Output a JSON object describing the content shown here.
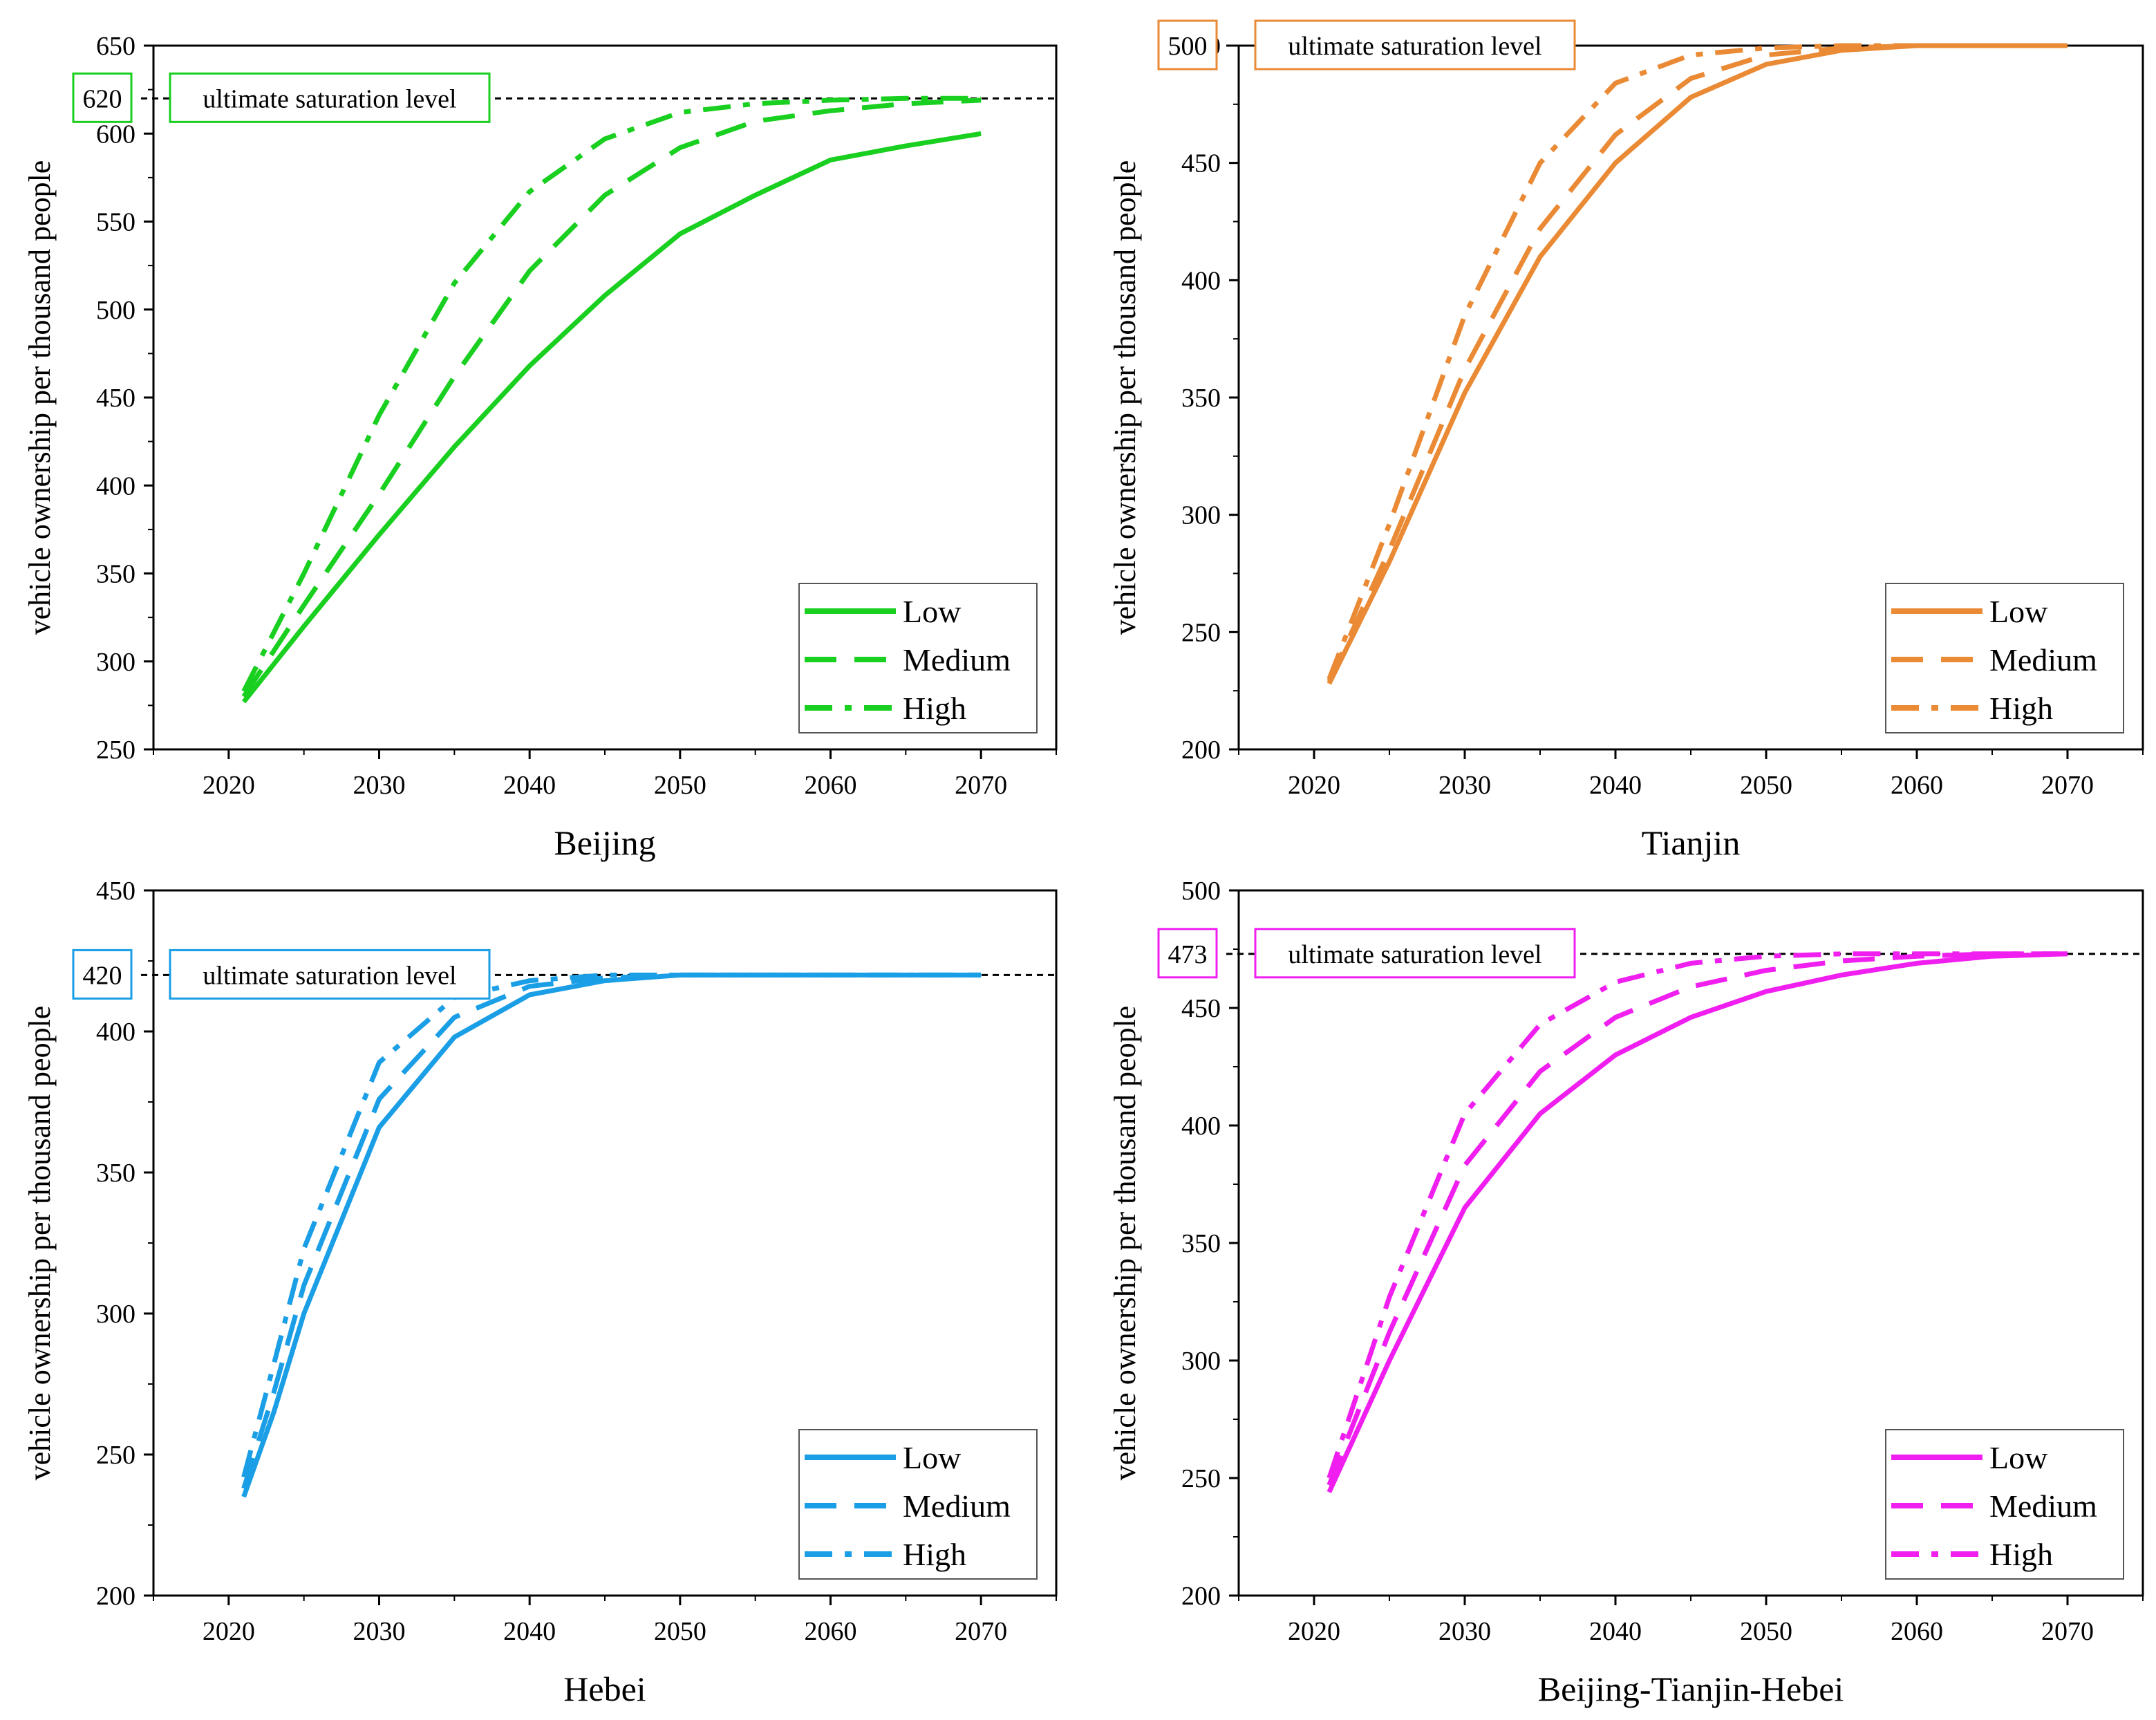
{
  "figure": {
    "y_axis_title": "vehicle ownership per thousand people",
    "saturation_label": "ultimate saturation level",
    "legend": [
      "Low",
      "Medium",
      "High"
    ]
  },
  "chart_data": [
    {
      "type": "line",
      "title": "Beijing",
      "xlabel": "Beijing",
      "ylabel": "vehicle ownership per thousand people",
      "color": "#19cf1f",
      "xlim": [
        2015,
        2075
      ],
      "ylim": [
        250,
        650
      ],
      "xticks": [
        2020,
        2030,
        2040,
        2050,
        2060,
        2070
      ],
      "yticks": [
        250,
        300,
        350,
        400,
        450,
        500,
        550,
        600,
        650
      ],
      "saturation": {
        "value": 620,
        "label": "620"
      },
      "x": [
        2021,
        2025,
        2030,
        2035,
        2040,
        2045,
        2050,
        2055,
        2060,
        2065,
        2070
      ],
      "series": [
        {
          "name": "Low",
          "style": "solid",
          "values": [
            277,
            320,
            372,
            422,
            468,
            508,
            543,
            565,
            585,
            593,
            600
          ]
        },
        {
          "name": "Medium",
          "style": "dashed",
          "values": [
            280,
            332,
            395,
            462,
            522,
            565,
            592,
            607,
            613,
            617,
            619
          ]
        },
        {
          "name": "High",
          "style": "dashdot",
          "values": [
            283,
            350,
            440,
            515,
            567,
            597,
            612,
            617,
            619,
            620,
            620
          ]
        }
      ]
    },
    {
      "type": "line",
      "title": "Tianjin",
      "xlabel": "Tianjin",
      "ylabel": "vehicle ownership per thousand people",
      "color": "#ea8a35",
      "xlim": [
        2015,
        2075
      ],
      "ylim": [
        200,
        500
      ],
      "xticks": [
        2020,
        2030,
        2040,
        2050,
        2060,
        2070
      ],
      "yticks": [
        200,
        250,
        300,
        350,
        400,
        450,
        500
      ],
      "saturation": {
        "value": 500,
        "label": "500"
      },
      "x": [
        2021,
        2025,
        2030,
        2035,
        2040,
        2045,
        2050,
        2055,
        2060,
        2065,
        2070
      ],
      "series": [
        {
          "name": "Low",
          "style": "solid",
          "values": [
            228,
            280,
            352,
            410,
            450,
            478,
            492,
            498,
            500,
            500,
            500
          ]
        },
        {
          "name": "Medium",
          "style": "dashed",
          "values": [
            229,
            285,
            362,
            422,
            462,
            486,
            496,
            499,
            500,
            500,
            500
          ]
        },
        {
          "name": "High",
          "style": "dashdot",
          "values": [
            230,
            296,
            385,
            450,
            484,
            496,
            499,
            500,
            500,
            500,
            500
          ]
        }
      ]
    },
    {
      "type": "line",
      "title": "Hebei",
      "xlabel": "Hebei",
      "ylabel": "vehicle ownership per thousand people",
      "color": "#1a9ee6",
      "xlim": [
        2015,
        2075
      ],
      "ylim": [
        200,
        450
      ],
      "xticks": [
        2020,
        2030,
        2040,
        2050,
        2060,
        2070
      ],
      "yticks": [
        200,
        250,
        300,
        350,
        400,
        450
      ],
      "saturation": {
        "value": 420,
        "label": "420"
      },
      "x": [
        2021,
        2023,
        2025,
        2030,
        2035,
        2040,
        2045,
        2050,
        2055,
        2060,
        2070
      ],
      "series": [
        {
          "name": "Low",
          "style": "solid",
          "values": [
            235,
            265,
            300,
            366,
            398,
            413,
            418,
            420,
            420,
            420,
            420
          ]
        },
        {
          "name": "Medium",
          "style": "dashed",
          "values": [
            238,
            272,
            310,
            376,
            405,
            416,
            419,
            420,
            420,
            420,
            420
          ]
        },
        {
          "name": "High",
          "style": "dashdot",
          "values": [
            242,
            282,
            323,
            389,
            412,
            418,
            420,
            420,
            420,
            420,
            420
          ]
        }
      ]
    },
    {
      "type": "line",
      "title": "Beijing-Tianjin-Hebei",
      "xlabel": "Beijing-Tianjin-Hebei",
      "ylabel": "vehicle ownership per thousand people",
      "color": "#f01ff0",
      "xlim": [
        2015,
        2075
      ],
      "ylim": [
        200,
        500
      ],
      "xticks": [
        2020,
        2030,
        2040,
        2050,
        2060,
        2070
      ],
      "yticks": [
        200,
        250,
        300,
        350,
        400,
        450,
        500
      ],
      "saturation": {
        "value": 473,
        "label": "473"
      },
      "x": [
        2021,
        2025,
        2030,
        2035,
        2040,
        2045,
        2050,
        2055,
        2060,
        2065,
        2070
      ],
      "series": [
        {
          "name": "Low",
          "style": "solid",
          "values": [
            244,
            300,
            365,
            405,
            430,
            446,
            457,
            464,
            469,
            472,
            473
          ]
        },
        {
          "name": "Medium",
          "style": "dashed",
          "values": [
            247,
            312,
            383,
            423,
            446,
            459,
            466,
            470,
            472,
            473,
            473
          ]
        },
        {
          "name": "High",
          "style": "dashdot",
          "values": [
            250,
            327,
            405,
            443,
            461,
            469,
            472,
            473,
            473,
            473,
            473
          ]
        }
      ]
    }
  ]
}
